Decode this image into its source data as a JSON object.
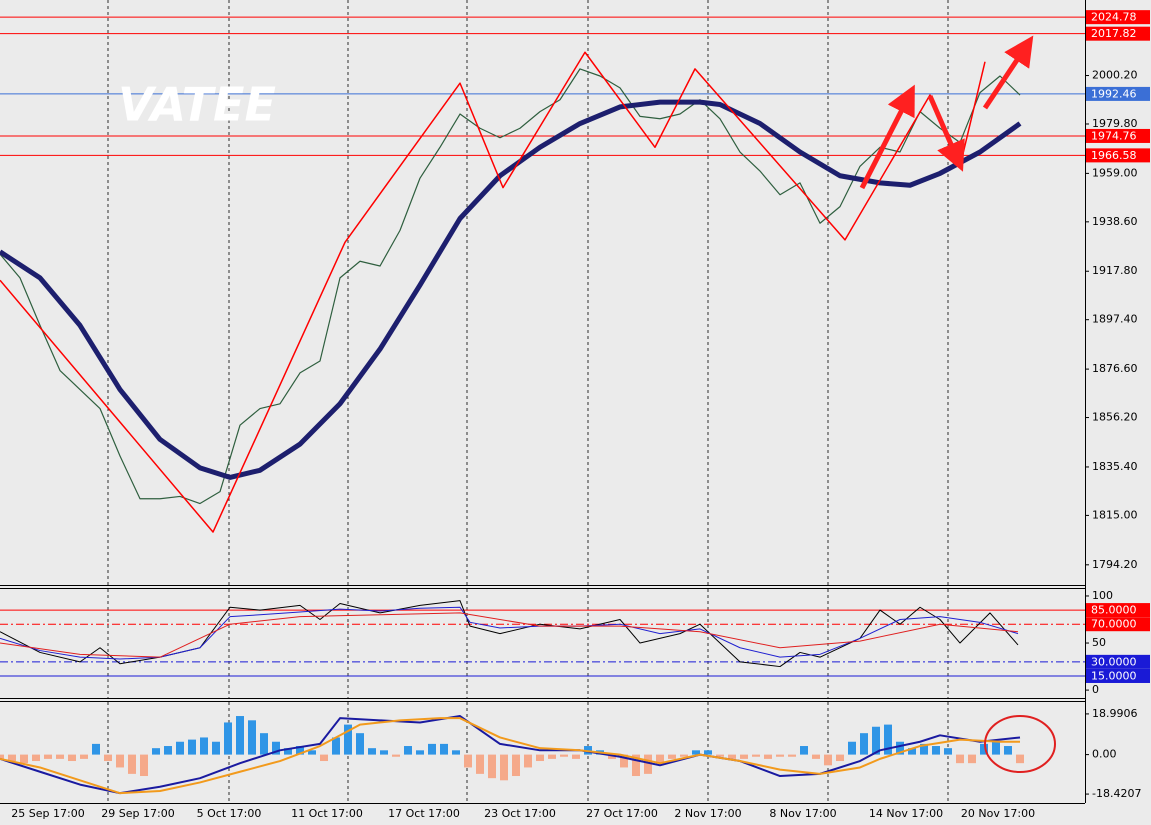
{
  "watermark": "VATEE",
  "chart_data": [
    {
      "type": "line",
      "xlim": [
        0,
        271.25
      ],
      "ylim": [
        1785.7,
        2032.0
      ],
      "yticks": [
        {
          "value": 2000.2,
          "label": "2000.20"
        },
        {
          "value": 1979.8,
          "label": "1979.80"
        },
        {
          "value": 1959,
          "label": "1959.00"
        },
        {
          "value": 1938.6,
          "label": "1938.60"
        },
        {
          "value": 1917.8,
          "label": "1917.80"
        },
        {
          "value": 1897.4,
          "label": "1897.40"
        },
        {
          "value": 1876.6,
          "label": "1876.60"
        },
        {
          "value": 1856.2,
          "label": "1856.20"
        },
        {
          "value": 1835.4,
          "label": "1835.40"
        },
        {
          "value": 1815,
          "label": "1815.00"
        },
        {
          "value": 1794.2,
          "label": "1794.20"
        }
      ],
      "xticks": [
        {
          "value": 12,
          "label": "25 Sep 17:00"
        },
        {
          "value": 34.5,
          "label": "29 Sep 17:00"
        },
        {
          "value": 57.25,
          "label": "5 Oct 17:00"
        },
        {
          "value": 81.75,
          "label": "11 Oct 17:00"
        },
        {
          "value": 106,
          "label": "17 Oct 17:00"
        },
        {
          "value": 130,
          "label": "23 Oct 17:00"
        },
        {
          "value": 155.5,
          "label": "27 Oct 17:00"
        },
        {
          "value": 177,
          "label": "2 Nov 17:00"
        },
        {
          "value": 200.75,
          "label": "8 Nov 17:00"
        },
        {
          "value": 226.5,
          "label": "14 Nov 17:00"
        },
        {
          "value": 249.5,
          "label": "20 Nov 17:00"
        }
      ],
      "xgrid": [
        27,
        57.25,
        87,
        116.75,
        147,
        177,
        207,
        237
      ],
      "levels": [
        {
          "value": 2024.78,
          "color": "#ff0000"
        },
        {
          "value": 2017.82,
          "color": "#ff0000"
        },
        {
          "value": 1992.46,
          "color": "#3b6fd6"
        },
        {
          "value": 1974.76,
          "color": "#ff0000"
        },
        {
          "value": 1966.58,
          "color": "#ff0000"
        }
      ],
      "series": [
        {
          "type": "line",
          "color": "#2f5f3f",
          "line_width": 1.2,
          "x": [
            0,
            5,
            10,
            15,
            20,
            25,
            30,
            35,
            40,
            45,
            50,
            55,
            60,
            65,
            70,
            75,
            80,
            85,
            90,
            95,
            100,
            105,
            110,
            115,
            120,
            125,
            130,
            135,
            140,
            145,
            150,
            155,
            160,
            165,
            170,
            175,
            180,
            185,
            190,
            195,
            200,
            205,
            210,
            215,
            220,
            225,
            230,
            235,
            240,
            245,
            250,
            255
          ],
          "values": [
            1925,
            1915,
            1895,
            1876,
            1868,
            1860,
            1840,
            1822,
            1822,
            1823,
            1820,
            1825,
            1853,
            1860,
            1862,
            1875,
            1880,
            1915,
            1922,
            1920,
            1935,
            1957,
            1970,
            1984,
            1978,
            1974,
            1978,
            1985,
            1990,
            2003,
            2000,
            1995,
            1983,
            1982,
            1984,
            1990,
            1982,
            1968,
            1960,
            1950,
            1955,
            1938,
            1945,
            1962,
            1970,
            1968,
            1985,
            1978,
            1972,
            1993,
            2000,
            1992
          ]
        },
        {
          "type": "line",
          "color": "#1d1f6e",
          "line_width": 5,
          "x": [
            0,
            10,
            20,
            30,
            40,
            50,
            57.5,
            65,
            75,
            85,
            95,
            105,
            115,
            125,
            135,
            145,
            155,
            165,
            175,
            180,
            190,
            200,
            210,
            220,
            227.5,
            235,
            245,
            255
          ],
          "values": [
            1926,
            1915,
            1895,
            1868,
            1847,
            1835,
            1831,
            1834,
            1845,
            1862,
            1885,
            1912,
            1940,
            1958,
            1970,
            1980,
            1987,
            1989,
            1989,
            1988,
            1980,
            1968,
            1958,
            1955,
            1954,
            1959,
            1968,
            1980
          ]
        },
        {
          "type": "line",
          "color": "#ff0000",
          "line_width": 1.5,
          "x": [
            0,
            53.25,
            86.25,
            115,
            125.75,
            146.25,
            163.75,
            173.75,
            211.25,
            232.5,
            240,
            246.25
          ],
          "values": [
            1914,
            1808,
            1930,
            1997,
            1953,
            2010,
            1970,
            2003,
            1931,
            1992,
            1962,
            2006
          ]
        }
      ]
    },
    {
      "type": "line",
      "xlim": [
        0,
        271.25
      ],
      "ylim": [
        -8.4,
        107.4
      ],
      "yticks": [
        100,
        50,
        0
      ],
      "levels": [
        {
          "value": 85,
          "label": "85.0000",
          "color": "#ff0000",
          "style": "solid"
        },
        {
          "value": 70,
          "label": "70.0000",
          "color": "#ff0000",
          "style": "dashdot"
        },
        {
          "value": 30,
          "label": "30.0000",
          "color": "#1a1ad6",
          "style": "dashdot"
        },
        {
          "value": 15,
          "label": "15.0000",
          "color": "#1a1ad6",
          "style": "solid"
        }
      ],
      "series": [
        {
          "type": "line",
          "color": "#000000",
          "line_width": 1,
          "x": [
            0,
            10,
            20,
            25,
            30,
            40,
            50,
            57.5,
            65,
            75,
            80,
            85,
            95,
            105,
            115,
            117.5,
            125,
            135,
            145,
            155,
            160,
            170,
            175,
            185,
            195,
            200,
            205,
            215,
            220,
            225,
            230,
            235,
            240,
            247.5,
            254.5
          ],
          "values": [
            62,
            40,
            30,
            45,
            28,
            35,
            45,
            88,
            85,
            90,
            75,
            92,
            82,
            90,
            95,
            68,
            60,
            70,
            65,
            75,
            50,
            60,
            70,
            30,
            25,
            40,
            35,
            55,
            85,
            70,
            88,
            75,
            50,
            82,
            48
          ]
        },
        {
          "type": "line",
          "color": "#2020d0",
          "line_width": 1,
          "x": [
            0,
            10,
            20,
            30,
            40,
            50,
            57.5,
            65,
            75,
            85,
            95,
            105,
            115,
            117.5,
            125,
            135,
            145,
            155,
            165,
            175,
            185,
            195,
            205,
            215,
            225,
            235,
            245,
            254.5
          ],
          "values": [
            55,
            42,
            35,
            33,
            35,
            45,
            78,
            80,
            83,
            86,
            84,
            87,
            88,
            72,
            66,
            68,
            68,
            70,
            60,
            65,
            45,
            35,
            38,
            55,
            75,
            78,
            72,
            60
          ]
        },
        {
          "type": "line",
          "color": "#e02020",
          "line_width": 1,
          "x": [
            0,
            20,
            40,
            57.5,
            75,
            95,
            115,
            135,
            155,
            175,
            195,
            215,
            235,
            254.5
          ],
          "values": [
            50,
            38,
            35,
            70,
            78,
            80,
            82,
            68,
            68,
            62,
            45,
            52,
            70,
            62
          ]
        }
      ]
    },
    {
      "type": "bar",
      "xlim": [
        0,
        271.25
      ],
      "ylim": [
        -22.59,
        24.55
      ],
      "yticks": [
        18.9906,
        {
          "value": 0,
          "label": "0.00"
        },
        -18.4207
      ],
      "series": [
        {
          "type": "bar",
          "pos_color": "#2f95e6",
          "neg_color": "#f5a98a",
          "x": [
            0,
            3,
            6,
            9,
            12,
            15,
            18,
            21,
            24,
            27,
            30,
            33,
            36,
            39,
            42,
            45,
            48,
            51,
            54,
            57,
            60,
            63,
            66,
            69,
            72,
            75,
            78,
            81,
            84,
            87,
            90,
            93,
            96,
            99,
            102,
            105,
            108,
            111,
            114,
            117,
            120,
            123,
            126,
            129,
            132,
            135,
            138,
            141,
            144,
            147,
            150,
            153,
            156,
            159,
            162,
            165,
            168,
            171,
            174,
            177,
            180,
            183,
            186,
            189,
            192,
            195,
            198,
            201,
            204,
            207,
            210,
            213,
            216,
            219,
            222,
            225,
            228,
            231,
            234,
            237,
            240,
            243,
            246,
            249,
            252,
            255
          ],
          "values": [
            -2,
            -3,
            -4,
            -3,
            -2,
            -2,
            -3,
            -2,
            5,
            -3,
            -6,
            -9,
            -10,
            3,
            4,
            6,
            7,
            8,
            6,
            15,
            18,
            16,
            10,
            6,
            3,
            4,
            2,
            -3,
            8,
            14,
            10,
            3,
            2,
            -1,
            4,
            2,
            5,
            5,
            2,
            -6,
            -9,
            -11,
            -12,
            -10,
            -6,
            -3,
            -2,
            -1,
            -2,
            4,
            2,
            -2,
            -6,
            -10,
            -9,
            -5,
            -2,
            -1,
            2,
            2,
            -1,
            -2,
            -2,
            -1,
            -2,
            -1,
            -1,
            4,
            -2,
            -5,
            -3,
            6,
            10,
            13,
            14,
            6,
            3,
            5,
            4,
            3,
            -4,
            -4,
            5,
            6,
            4,
            -4
          ]
        },
        {
          "type": "line",
          "color": "#1a1aa0",
          "line_width": 2,
          "x": [
            0,
            10,
            20,
            30,
            40,
            50,
            60,
            70,
            80,
            85,
            95,
            105,
            115,
            125,
            135,
            145,
            155,
            165,
            175,
            185,
            195,
            205,
            215,
            220,
            230,
            235,
            245,
            255
          ],
          "values": [
            -2,
            -8,
            -14,
            -18,
            -15,
            -11,
            -4,
            2,
            5,
            17,
            16,
            15,
            18,
            5,
            2,
            2,
            -1,
            -5,
            0,
            -3,
            -10,
            -9,
            -3,
            2,
            6,
            9,
            6,
            8
          ]
        },
        {
          "type": "line",
          "color": "#f29a1c",
          "line_width": 2,
          "x": [
            0,
            10,
            20,
            30,
            40,
            50,
            60,
            70,
            80,
            90,
            100,
            110,
            115,
            125,
            135,
            145,
            155,
            165,
            175,
            185,
            195,
            205,
            215,
            220,
            230,
            240,
            250,
            255
          ],
          "values": [
            -2,
            -6,
            -12,
            -18,
            -17,
            -13,
            -8,
            -3,
            4,
            14,
            16,
            17,
            17,
            8,
            3,
            2,
            0,
            -4,
            0,
            -3,
            -7,
            -9,
            -6,
            -2,
            4,
            7,
            6,
            6
          ]
        }
      ]
    }
  ]
}
